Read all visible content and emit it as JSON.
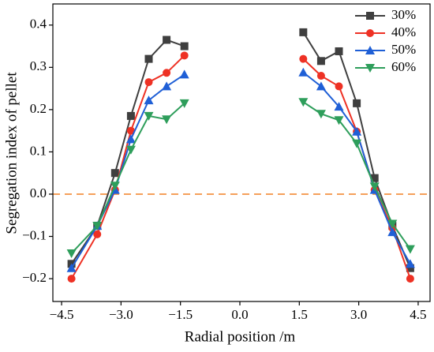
{
  "chart_data": {
    "type": "line",
    "x_label": "Radial position /m",
    "y_label": "Segregation index of pellet",
    "x": [
      -4.25,
      -3.6,
      -3.15,
      -2.75,
      -2.3,
      -1.85,
      -1.4,
      0,
      1.6,
      2.05,
      2.5,
      2.95,
      3.4,
      3.85,
      4.3
    ],
    "series": [
      {
        "name": "30%",
        "color": "#3f3f3f",
        "marker": "square",
        "values": [
          -0.165,
          -0.075,
          0.05,
          0.185,
          0.32,
          0.365,
          0.35,
          null,
          0.383,
          0.315,
          0.338,
          0.215,
          0.038,
          -0.075,
          -0.175
        ]
      },
      {
        "name": "40%",
        "color": "#ee3124",
        "marker": "circle",
        "values": [
          -0.2,
          -0.095,
          0.01,
          0.15,
          0.265,
          0.287,
          0.328,
          null,
          0.32,
          0.28,
          0.255,
          0.148,
          0.01,
          -0.08,
          -0.2
        ]
      },
      {
        "name": "50%",
        "color": "#1f5fd6",
        "marker": "triangle-up",
        "values": [
          -0.175,
          -0.075,
          0.01,
          0.13,
          0.222,
          0.255,
          0.283,
          null,
          0.288,
          0.255,
          0.207,
          0.148,
          0.01,
          -0.09,
          -0.165
        ]
      },
      {
        "name": "60%",
        "color": "#2e9e5b",
        "marker": "triangle-down",
        "values": [
          -0.14,
          -0.075,
          0.02,
          0.105,
          0.185,
          0.177,
          0.215,
          null,
          0.218,
          0.19,
          0.175,
          0.12,
          0.018,
          -0.07,
          -0.13
        ]
      }
    ],
    "hline": {
      "value": 0,
      "color": "#f5a05a"
    },
    "xlim": [
      -4.72,
      4.8
    ],
    "ylim": [
      -0.254,
      0.45
    ],
    "xticks": [
      {
        "value": -4.5,
        "label": "−4.5"
      },
      {
        "value": -3.0,
        "label": "−3.0"
      },
      {
        "value": -1.5,
        "label": "−1.5"
      },
      {
        "value": 0,
        "label": "0.0"
      },
      1.5,
      {
        "value": 3.0,
        "label": "3.0"
      },
      4.5
    ],
    "yticks": [
      {
        "value": -0.2,
        "label": "−0.2"
      },
      {
        "value": -0.1,
        "label": "−0.1"
      },
      {
        "value": 0,
        "label": "0.0"
      },
      0.1,
      0.2,
      0.3,
      0.4
    ],
    "legend": "upper right"
  }
}
